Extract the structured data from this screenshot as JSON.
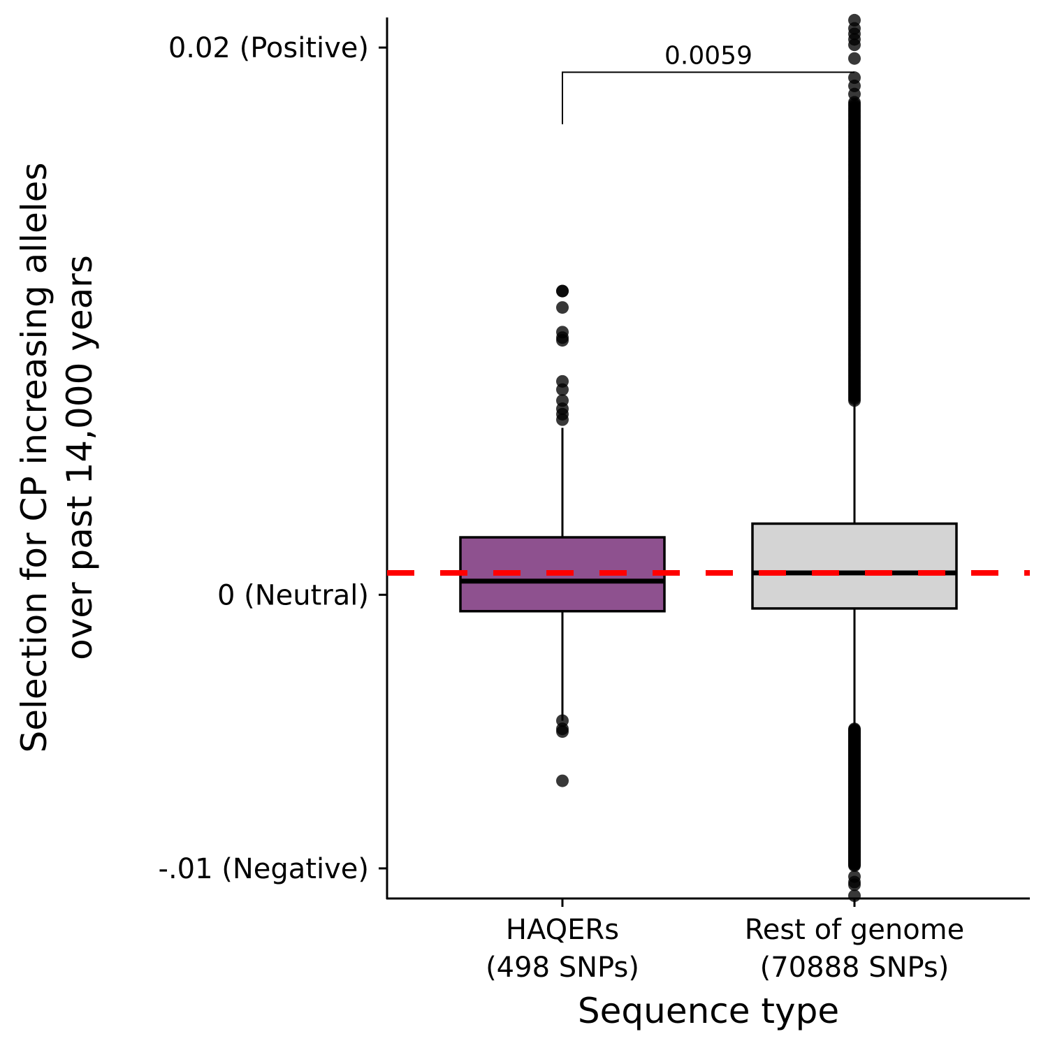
{
  "chart_data": {
    "type": "box",
    "xlabel": "Sequence type",
    "ylabel_lines": [
      "Selection for CP increasing alleles",
      "over past 14,000 years"
    ],
    "ylim": [
      -0.0111,
      0.0211
    ],
    "y_ticks": [
      {
        "value": 0.02,
        "label": "0.02 (Positive)"
      },
      {
        "value": 0,
        "label": "0 (Neutral)"
      },
      {
        "value": -0.01,
        "label": "-.01 (Negative)"
      }
    ],
    "categories": [
      {
        "label_lines": [
          "HAQERs",
          "(498 SNPs)"
        ],
        "n_snps": 498
      },
      {
        "label_lines": [
          "Rest of genome",
          "(70888 SNPs)"
        ],
        "n_snps": 70888
      }
    ],
    "boxes": [
      {
        "category": "HAQERs",
        "fill": "#8e518f",
        "q1": -0.0006,
        "median": 0.0005,
        "q3": 0.0021,
        "whisker_low": -0.0046,
        "whisker_high": 0.0061,
        "outliers": [
          0.0111,
          0.0111,
          0.0105,
          0.0096,
          0.0094,
          0.0093,
          0.0078,
          0.0075,
          0.0071,
          0.0068,
          0.0066,
          0.0064,
          -0.0046,
          -0.0049,
          -0.005,
          -0.0068
        ]
      },
      {
        "category": "Rest of genome",
        "fill": "#d4d4d4",
        "q1": -0.0005,
        "median": 0.0008,
        "q3": 0.0026,
        "whisker_low": -0.0049,
        "whisker_high": 0.0071,
        "outliers_dense_ranges": [
          [
            0.0071,
            0.018
          ],
          [
            -0.0099,
            -0.0049
          ]
        ],
        "outliers": [
          0.021,
          0.0207,
          0.0205,
          0.0203,
          0.0201,
          0.0196,
          0.0189,
          0.0186,
          0.0183,
          -0.0103,
          -0.0105,
          -0.0106,
          -0.011
        ]
      }
    ],
    "reference_line": {
      "value": 0.0008,
      "color": "#ff0000",
      "style": "dashed"
    },
    "comparison": {
      "from": "HAQERs",
      "to": "Rest of genome",
      "label": "0.0059",
      "y_bracket": 0.0191,
      "left_drop_to": 0.0172,
      "right_drop_to": 0.0191
    }
  }
}
